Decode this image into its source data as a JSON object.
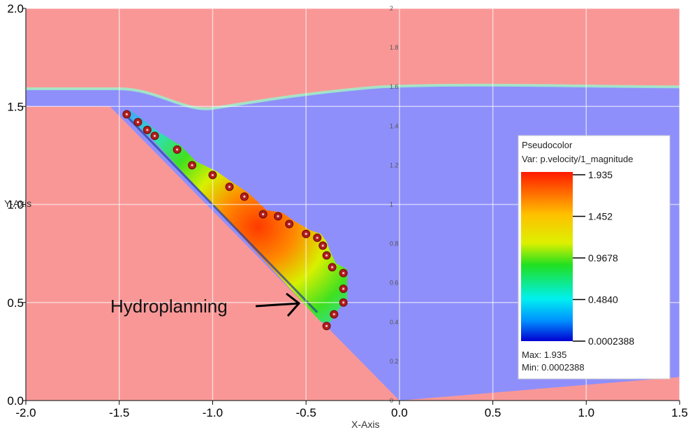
{
  "chart_data": {
    "type": "scatter",
    "title": "",
    "xlabel": "X-Axis",
    "ylabel": "Y-Axis",
    "xlim": [
      -2.0,
      1.5
    ],
    "ylim": [
      0.0,
      2.0
    ],
    "x_ticks": [
      "-2.0",
      "-1.5",
      "-1.0",
      "-0.5",
      "0.0",
      "0.5",
      "1.0",
      "1.5"
    ],
    "y_ticks": [
      "0.0",
      "0.5",
      "1.0",
      "1.5",
      "2.0"
    ],
    "inner_y_ticks": [
      "0",
      "0.2",
      "0.4",
      "0.6",
      "0.8",
      "1",
      "1.2",
      "1.4",
      "1.6",
      "1.8",
      "2"
    ],
    "grid": true,
    "annotation": "Hydroplanning",
    "points": [
      {
        "x": -1.46,
        "y": 1.46
      },
      {
        "x": -1.4,
        "y": 1.42
      },
      {
        "x": -1.35,
        "y": 1.38
      },
      {
        "x": -1.31,
        "y": 1.35
      },
      {
        "x": -1.19,
        "y": 1.28
      },
      {
        "x": -1.11,
        "y": 1.2
      },
      {
        "x": -1.0,
        "y": 1.15
      },
      {
        "x": -0.91,
        "y": 1.09
      },
      {
        "x": -0.83,
        "y": 1.04
      },
      {
        "x": -0.73,
        "y": 0.95
      },
      {
        "x": -0.65,
        "y": 0.94
      },
      {
        "x": -0.59,
        "y": 0.9
      },
      {
        "x": -0.5,
        "y": 0.85
      },
      {
        "x": -0.44,
        "y": 0.83
      },
      {
        "x": -0.41,
        "y": 0.79
      },
      {
        "x": -0.39,
        "y": 0.74
      },
      {
        "x": -0.36,
        "y": 0.68
      },
      {
        "x": -0.3,
        "y": 0.65
      },
      {
        "x": -0.3,
        "y": 0.57
      },
      {
        "x": -0.3,
        "y": 0.5
      },
      {
        "x": -0.35,
        "y": 0.44
      },
      {
        "x": -0.39,
        "y": 0.38
      }
    ],
    "legend": {
      "title": "Pseudocolor",
      "var": "Var: p.velocity/1_magnitude",
      "ticks": [
        "1.935",
        "1.452",
        "0.9678",
        "0.4840",
        "0.0002388"
      ],
      "max": "Max: 1.935",
      "min": "Min: 0.0002388",
      "placement": "right"
    },
    "colors": {
      "air": "#f99797",
      "water": "#8f8ffb",
      "point_fill": "#b01c1c",
      "point_center": "#f4c0c0"
    }
  }
}
